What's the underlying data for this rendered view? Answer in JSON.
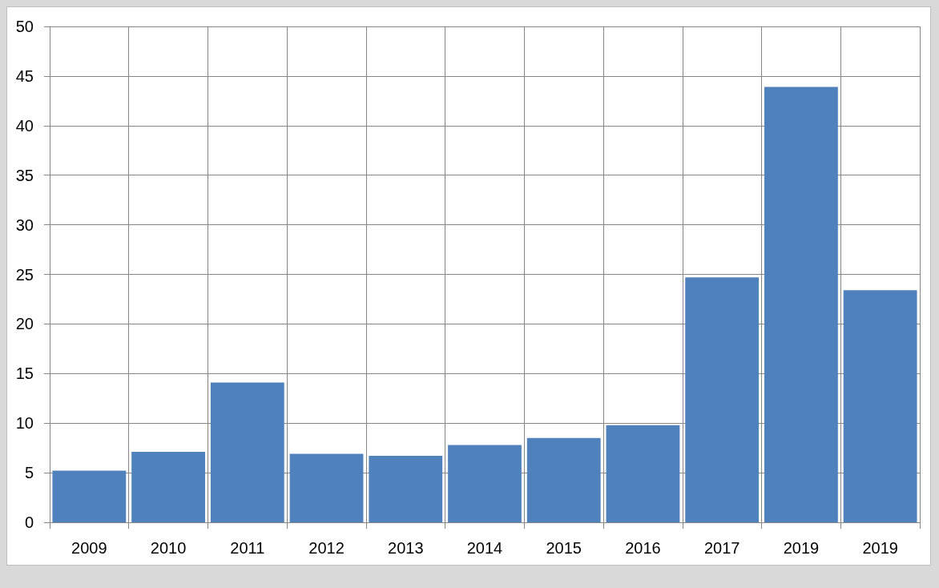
{
  "chart_data": {
    "type": "bar",
    "categories": [
      "2009",
      "2010",
      "2011",
      "2012",
      "2013",
      "2014",
      "2015",
      "2016",
      "2017",
      "2019",
      "2019"
    ],
    "values": [
      5.2,
      7.1,
      14.1,
      6.9,
      6.7,
      7.8,
      8.5,
      9.8,
      24.7,
      43.9,
      23.4
    ],
    "color": "#4f81bd",
    "ylim": [
      0,
      50
    ],
    "yticks": [
      0,
      5,
      10,
      15,
      20,
      25,
      30,
      35,
      40,
      45,
      50
    ],
    "grid": true
  }
}
